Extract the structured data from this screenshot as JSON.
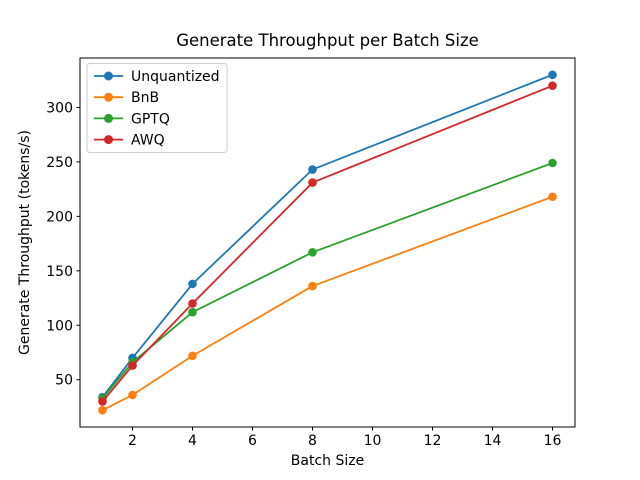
{
  "chart_data": {
    "type": "line",
    "title": "Generate Throughput per Batch Size",
    "xlabel": "Batch Size",
    "ylabel": "Generate Throughput (tokens/s)",
    "x": [
      1,
      2,
      4,
      8,
      16
    ],
    "series": [
      {
        "name": "Unquantized",
        "color": "#1f77b4",
        "values": [
          34,
          70,
          138,
          243,
          330
        ]
      },
      {
        "name": "BnB",
        "color": "#ff7f0e",
        "values": [
          22,
          36,
          72,
          136,
          218
        ]
      },
      {
        "name": "GPTQ",
        "color": "#2ca02c",
        "values": [
          33,
          66,
          112,
          167,
          249
        ]
      },
      {
        "name": "AWQ",
        "color": "#d62728",
        "values": [
          30,
          63,
          120,
          231,
          320
        ]
      }
    ],
    "xticks": [
      2,
      4,
      6,
      8,
      10,
      12,
      14,
      16
    ],
    "yticks": [
      50,
      100,
      150,
      200,
      250,
      300
    ],
    "xlim": [
      0.25,
      16.75
    ],
    "ylim": [
      6.6,
      345.4
    ],
    "grid": false,
    "legend_position": "upper left",
    "marker": "circle",
    "axes_color": "#000000",
    "legend_border_color": "#cccccc",
    "background_color": "#ffffff"
  }
}
